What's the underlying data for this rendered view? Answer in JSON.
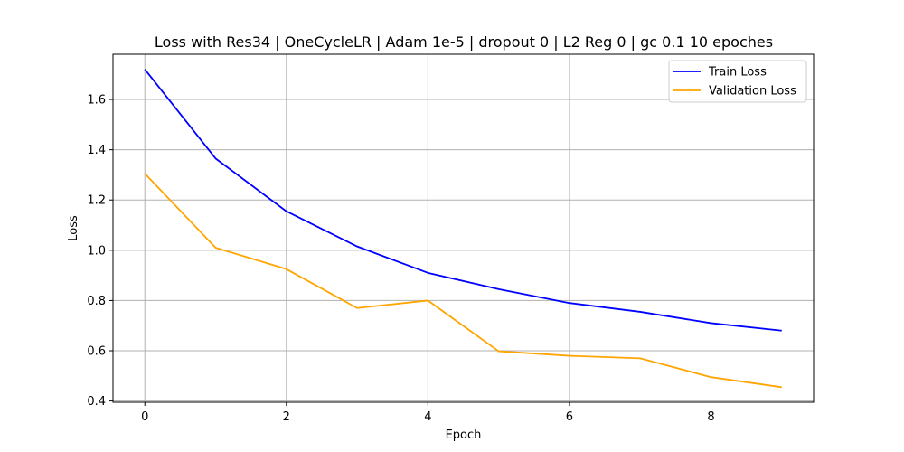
{
  "chart_data": {
    "type": "line",
    "title": "Loss with Res34 | OneCycleLR | Adam 1e-5 | dropout 0 | L2 Reg 0 | gc 0.1 10 epoches",
    "xlabel": "Epoch",
    "ylabel": "Loss",
    "x": [
      0,
      1,
      2,
      3,
      4,
      5,
      6,
      7,
      8,
      9
    ],
    "xlim": [
      -0.45,
      9.45
    ],
    "ylim": [
      0.395,
      1.78
    ],
    "xticks": [
      0,
      2,
      4,
      6,
      8
    ],
    "xtick_labels": [
      "0",
      "2",
      "4",
      "6",
      "8"
    ],
    "yticks": [
      0.4,
      0.6,
      0.8,
      1.0,
      1.2,
      1.4,
      1.6
    ],
    "ytick_labels": [
      "0.4",
      "0.6",
      "0.8",
      "1.0",
      "1.2",
      "1.4",
      "1.6"
    ],
    "grid": true,
    "legend_position": "top-right",
    "series": [
      {
        "name": "Train Loss",
        "color": "#0000ff",
        "values": [
          1.72,
          1.365,
          1.155,
          1.015,
          0.91,
          0.845,
          0.79,
          0.755,
          0.71,
          0.68
        ]
      },
      {
        "name": "Validation Loss",
        "color": "#ffa500",
        "values": [
          1.305,
          1.01,
          0.925,
          0.77,
          0.8,
          0.598,
          0.58,
          0.57,
          0.495,
          0.455
        ]
      }
    ]
  }
}
